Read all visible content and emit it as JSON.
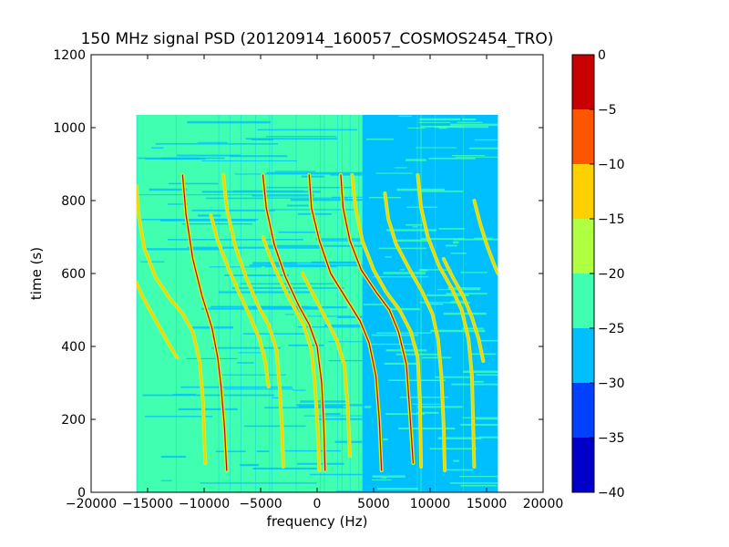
{
  "chart_data": {
    "type": "heatmap",
    "title": "150 MHz signal PSD (20120914_160057_COSMOS2454_TRO)",
    "xlabel": "frequency (Hz)",
    "ylabel": "time (s)",
    "xlim": [
      -20000,
      20000
    ],
    "ylim": [
      0,
      1200
    ],
    "x_ticks": [
      -20000,
      -15000,
      -10000,
      -5000,
      0,
      5000,
      10000,
      15000,
      20000
    ],
    "x_tick_labels": [
      "−20000",
      "−15000",
      "−10000",
      "−5000",
      "0",
      "5000",
      "10000",
      "15000",
      "20000"
    ],
    "y_ticks": [
      0,
      200,
      400,
      600,
      800,
      1000,
      1200
    ],
    "y_tick_labels": [
      "0",
      "200",
      "400",
      "600",
      "800",
      "1000",
      "1200"
    ],
    "data_extent": {
      "freq_min": -16000,
      "freq_max": 16000,
      "time_min": 0,
      "time_max": 1035
    },
    "background_regions": [
      {
        "freq_from": -16000,
        "freq_to": 4000,
        "level": -22.5
      },
      {
        "freq_from": 4000,
        "freq_to": 16000,
        "level": -27.5
      }
    ],
    "colorbar": {
      "min": -40,
      "max": 0,
      "ticks": [
        0,
        -5,
        -10,
        -15,
        -20,
        -25,
        -30,
        -35,
        -40
      ],
      "tick_labels": [
        "0",
        "−5",
        "−10",
        "−15",
        "−20",
        "−25",
        "−30",
        "−35",
        "−40"
      ],
      "bands": [
        {
          "from": -40,
          "to": -35,
          "color": "#0000c8"
        },
        {
          "from": -35,
          "to": -30,
          "color": "#0040ff"
        },
        {
          "from": -30,
          "to": -25,
          "color": "#00bfff"
        },
        {
          "from": -25,
          "to": -20,
          "color": "#40ffb0"
        },
        {
          "from": -20,
          "to": -15,
          "color": "#b0ff40"
        },
        {
          "from": -15,
          "to": -10,
          "color": "#ffd000"
        },
        {
          "from": -10,
          "to": -5,
          "color": "#ff5500"
        },
        {
          "from": -5,
          "to": 0,
          "color": "#c80000"
        }
      ]
    },
    "series": [
      {
        "peak": "red",
        "points": [
          [
            -11900,
            870
          ],
          [
            -11600,
            760
          ],
          [
            -11000,
            640
          ],
          [
            -10200,
            540
          ],
          [
            -9300,
            450
          ],
          [
            -8800,
            370
          ],
          [
            -8500,
            290
          ],
          [
            -8200,
            180
          ],
          [
            -8000,
            60
          ]
        ]
      },
      {
        "peak": "red",
        "points": [
          [
            -4800,
            870
          ],
          [
            -4500,
            780
          ],
          [
            -3800,
            680
          ],
          [
            -2800,
            590
          ],
          [
            -1600,
            510
          ],
          [
            -700,
            460
          ],
          [
            0,
            400
          ],
          [
            400,
            300
          ],
          [
            600,
            180
          ],
          [
            700,
            60
          ]
        ]
      },
      {
        "peak": "red",
        "points": [
          [
            -700,
            870
          ],
          [
            -500,
            780
          ],
          [
            200,
            690
          ],
          [
            1200,
            600
          ],
          [
            2600,
            530
          ],
          [
            3800,
            470
          ],
          [
            4600,
            410
          ],
          [
            5200,
            320
          ],
          [
            5500,
            200
          ],
          [
            5700,
            60
          ]
        ]
      },
      {
        "peak": "red",
        "points": [
          [
            2100,
            870
          ],
          [
            2300,
            780
          ],
          [
            2900,
            690
          ],
          [
            3900,
            610
          ],
          [
            5200,
            550
          ],
          [
            6400,
            500
          ],
          [
            7200,
            440
          ],
          [
            7900,
            350
          ],
          [
            8200,
            220
          ],
          [
            8500,
            80
          ]
        ]
      },
      {
        "peak": "yellow",
        "points": [
          [
            -16000,
            840
          ],
          [
            -15800,
            760
          ],
          [
            -15300,
            670
          ],
          [
            -14300,
            590
          ],
          [
            -13000,
            530
          ],
          [
            -11900,
            490
          ],
          [
            -11000,
            440
          ],
          [
            -10400,
            360
          ],
          [
            -10100,
            250
          ],
          [
            -9900,
            80
          ]
        ]
      },
      {
        "peak": "yellow",
        "points": [
          [
            -16000,
            575
          ],
          [
            -15500,
            540
          ],
          [
            -14800,
            500
          ],
          [
            -13900,
            450
          ],
          [
            -13000,
            400
          ],
          [
            -12400,
            370
          ]
        ]
      },
      {
        "peak": "yellow",
        "points": [
          [
            -8300,
            870
          ],
          [
            -8000,
            780
          ],
          [
            -7300,
            680
          ],
          [
            -6300,
            590
          ],
          [
            -5200,
            510
          ],
          [
            -4300,
            460
          ],
          [
            -3600,
            390
          ],
          [
            -3300,
            280
          ],
          [
            -3100,
            170
          ],
          [
            -3000,
            70
          ]
        ]
      },
      {
        "peak": "yellow",
        "points": [
          [
            -9400,
            760
          ],
          [
            -8800,
            690
          ],
          [
            -7800,
            610
          ],
          [
            -6800,
            540
          ],
          [
            -5900,
            480
          ],
          [
            -5100,
            420
          ],
          [
            -4600,
            360
          ],
          [
            -4300,
            290
          ]
        ]
      },
      {
        "peak": "yellow",
        "points": [
          [
            -4800,
            700
          ],
          [
            -4100,
            640
          ],
          [
            -3100,
            570
          ],
          [
            -2100,
            510
          ],
          [
            -1200,
            460
          ],
          [
            -500,
            390
          ],
          [
            -200,
            300
          ],
          [
            100,
            150
          ],
          [
            200,
            60
          ]
        ]
      },
      {
        "peak": "yellow",
        "points": [
          [
            3100,
            870
          ],
          [
            3400,
            780
          ],
          [
            4000,
            690
          ],
          [
            5000,
            610
          ],
          [
            6100,
            550
          ],
          [
            7300,
            500
          ],
          [
            8300,
            440
          ],
          [
            8900,
            370
          ],
          [
            9100,
            250
          ],
          [
            9200,
            70
          ]
        ]
      },
      {
        "peak": "yellow",
        "points": [
          [
            6000,
            820
          ],
          [
            6300,
            750
          ],
          [
            7000,
            680
          ],
          [
            8200,
            610
          ],
          [
            9300,
            550
          ],
          [
            10200,
            490
          ],
          [
            10700,
            420
          ],
          [
            11000,
            320
          ],
          [
            11200,
            180
          ],
          [
            11300,
            60
          ]
        ]
      },
      {
        "peak": "yellow",
        "points": [
          [
            8900,
            870
          ],
          [
            9200,
            780
          ],
          [
            9800,
            700
          ],
          [
            10800,
            620
          ],
          [
            11900,
            560
          ],
          [
            12800,
            500
          ],
          [
            13400,
            420
          ],
          [
            13700,
            320
          ],
          [
            13800,
            200
          ],
          [
            13900,
            70
          ]
        ]
      },
      {
        "peak": "yellow",
        "points": [
          [
            13900,
            800
          ],
          [
            14400,
            740
          ],
          [
            15000,
            680
          ],
          [
            15600,
            630
          ],
          [
            16000,
            600
          ]
        ]
      },
      {
        "peak": "yellow",
        "points": [
          [
            11200,
            640
          ],
          [
            12000,
            590
          ],
          [
            12900,
            540
          ],
          [
            13700,
            480
          ],
          [
            14300,
            420
          ],
          [
            14700,
            360
          ]
        ]
      },
      {
        "peak": "yellow",
        "points": [
          [
            -1300,
            600
          ],
          [
            -300,
            540
          ],
          [
            700,
            480
          ],
          [
            1700,
            420
          ],
          [
            2400,
            350
          ],
          [
            2700,
            240
          ],
          [
            2900,
            100
          ]
        ]
      }
    ]
  }
}
